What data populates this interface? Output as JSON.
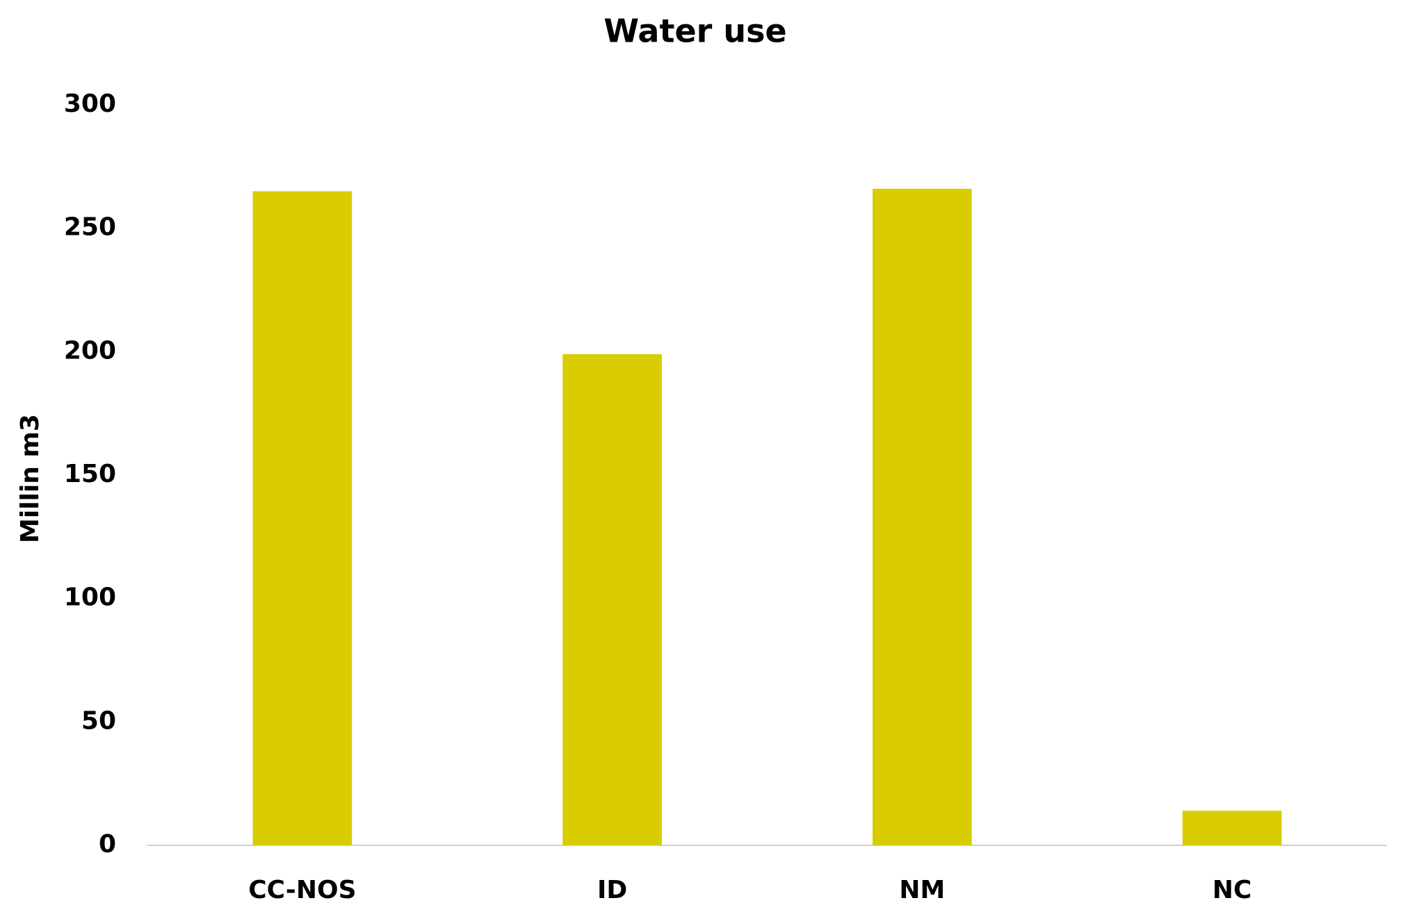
{
  "chart_data": {
    "type": "bar",
    "title": "Water use",
    "y_label": "Millin m3",
    "categories": [
      "CC-NOS",
      "ID",
      "NM",
      "NC"
    ],
    "values": [
      265,
      199,
      266,
      14
    ],
    "color": "#d9cc00",
    "ylim": [
      0,
      300
    ],
    "yticks": [
      0,
      50,
      100,
      150,
      200,
      250,
      300
    ],
    "grid": false
  }
}
